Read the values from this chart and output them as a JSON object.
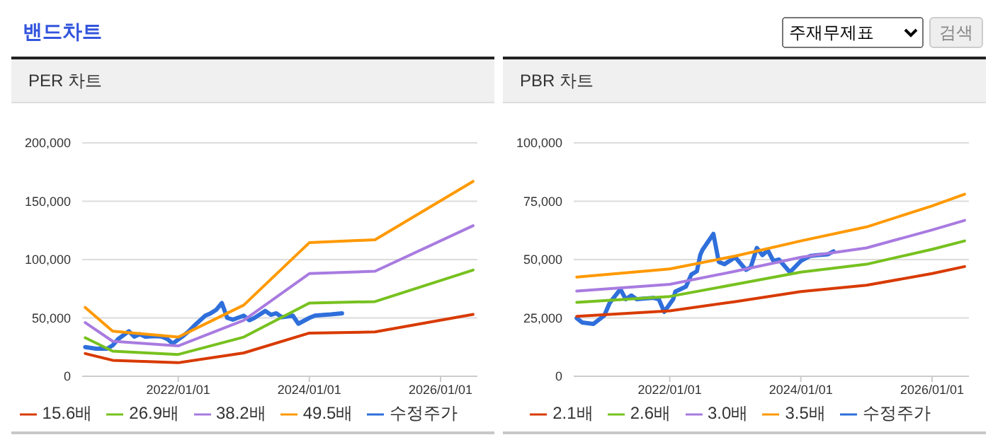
{
  "chart_data": [
    {
      "type": "line",
      "title": "PER 차트",
      "annotations": [
        "밴드차트",
        "주재무제표",
        "검색"
      ],
      "xlim": [
        "2020-07-15",
        "2026-07-25"
      ],
      "xticks": [
        {
          "value": "2022-01-01",
          "label": "2022/01/01"
        },
        {
          "value": "2024-01-01",
          "label": "2024/01/01"
        },
        {
          "value": "2026-01-01",
          "label": "2026/01/01"
        }
      ],
      "ylim": [
        0,
        200000
      ],
      "yticks": [
        0,
        {
          "value": 50000,
          "label": "50,000"
        },
        {
          "value": 100000,
          "label": "100,000"
        },
        {
          "value": 150000,
          "label": "150,000"
        },
        {
          "value": 200000,
          "label": "200,000"
        }
      ],
      "grid": "y",
      "legend": "bottom",
      "marker": "none",
      "series": [
        {
          "name": "수정주가",
          "color": "#2f6fdb",
          "x": [
            "2020-08",
            "2020-10",
            "2020-12",
            "2021-01",
            "2021-02",
            "2021-04",
            "2021-05",
            "2021-06",
            "2021-07",
            "2021-09",
            "2021-10",
            "2021-11",
            "2021-12",
            "2022-02",
            "2022-03",
            "2022-04",
            "2022-06",
            "2022-07",
            "2022-08",
            "2022-09",
            "2022-10",
            "2022-11",
            "2023-01",
            "2023-02",
            "2023-03",
            "2023-05",
            "2023-06",
            "2023-07",
            "2023-08",
            "2023-10",
            "2023-11",
            "2024-01",
            "2024-02",
            "2024-04",
            "2024-05",
            "2024-07"
          ],
          "values": [
            25000,
            23600,
            23600,
            26500,
            32000,
            38600,
            34000,
            36000,
            34000,
            34400,
            34000,
            32000,
            28000,
            35000,
            38600,
            43500,
            52000,
            54000,
            57000,
            62700,
            50000,
            48500,
            52000,
            48000,
            50000,
            56000,
            52700,
            54000,
            50600,
            52000,
            45000,
            50000,
            52000,
            52700,
            53000,
            54000
          ]
        },
        {
          "name": "15.6배",
          "color": "#d83a00",
          "x": [
            "2020-08",
            "2021-01",
            "2022-01",
            "2023-01",
            "2024-01",
            "2025-01",
            "2026-07"
          ],
          "values": [
            19500,
            13700,
            11600,
            20000,
            37000,
            38000,
            53000
          ]
        },
        {
          "name": "26.9배",
          "color": "#77c11f",
          "x": [
            "2020-08",
            "2021-01",
            "2022-01",
            "2023-01",
            "2024-01",
            "2025-01",
            "2026-07"
          ],
          "values": [
            33000,
            21500,
            18700,
            33600,
            62700,
            64000,
            91000
          ]
        },
        {
          "name": "38.2배",
          "color": "#a87be0",
          "x": [
            "2020-08",
            "2021-01",
            "2022-01",
            "2023-01",
            "2024-01",
            "2025-01",
            "2026-07"
          ],
          "values": [
            46000,
            30000,
            26000,
            48000,
            88000,
            90000,
            129000
          ]
        },
        {
          "name": "49.5배",
          "color": "#ff9900",
          "x": [
            "2020-08",
            "2021-01",
            "2022-01",
            "2023-01",
            "2024-01",
            "2025-01",
            "2026-07"
          ],
          "values": [
            59000,
            38600,
            33600,
            61000,
            114500,
            117000,
            167000
          ]
        }
      ]
    },
    {
      "type": "line",
      "title": "PBR 차트",
      "xlim": [
        "2020-07-15",
        "2026-07-25"
      ],
      "xticks": [
        {
          "value": "2022-01-01",
          "label": "2022/01/01"
        },
        {
          "value": "2024-01-01",
          "label": "2024/01/01"
        },
        {
          "value": "2026-01-01",
          "label": "2026/01/01"
        }
      ],
      "ylim": [
        0,
        100000
      ],
      "yticks": [
        0,
        {
          "value": 25000,
          "label": "25,000"
        },
        {
          "value": 50000,
          "label": "50,000"
        },
        {
          "value": 75000,
          "label": "75,000"
        },
        {
          "value": 100000,
          "label": "100,000"
        }
      ],
      "grid": "y",
      "legend": "bottom",
      "marker": "none",
      "series": [
        {
          "name": "수정주가",
          "color": "#2f6fdb",
          "x": [
            "2020-08",
            "2020-09",
            "2020-11",
            "2021-01",
            "2021-02",
            "2021-04",
            "2021-05",
            "2021-06",
            "2021-07",
            "2021-10",
            "2021-11",
            "2021-12",
            "2022-01-20",
            "2022-02",
            "2022-04",
            "2022-05",
            "2022-06",
            "2022-06-20",
            "2022-07",
            "2022-09",
            "2022-10",
            "2022-11",
            "2023-01",
            "2023-03",
            "2023-03-28",
            "2023-05",
            "2023-06",
            "2023-07",
            "2023-08",
            "2023-09",
            "2023-11",
            "2024-01",
            "2024-02-20",
            "2024-04",
            "2024-06",
            "2024-07"
          ],
          "values": [
            24900,
            23000,
            22400,
            26000,
            31500,
            37300,
            33000,
            34600,
            33000,
            33600,
            33000,
            27600,
            33000,
            36300,
            38400,
            43600,
            45000,
            52000,
            54000,
            61000,
            49000,
            48000,
            51000,
            45600,
            46700,
            55000,
            51900,
            54000,
            49400,
            50000,
            44600,
            49400,
            51500,
            51900,
            52300,
            53500
          ]
        },
        {
          "name": "2.1배",
          "color": "#d83a00",
          "x": [
            "2020-08",
            "2022-01",
            "2023-01",
            "2024-01",
            "2025-01",
            "2026-01",
            "2026-07"
          ],
          "values": [
            25700,
            28000,
            32000,
            36300,
            39000,
            44000,
            47000
          ]
        },
        {
          "name": "2.6배",
          "color": "#77c11f",
          "x": [
            "2020-08",
            "2022-01",
            "2023-01",
            "2024-01",
            "2025-01",
            "2026-01",
            "2026-07"
          ],
          "values": [
            31700,
            34200,
            39400,
            44600,
            48000,
            54400,
            58000
          ]
        },
        {
          "name": "3.0배",
          "color": "#a87be0",
          "x": [
            "2020-08",
            "2022-01",
            "2023-01",
            "2024-01",
            "2025-01",
            "2026-01",
            "2026-07"
          ],
          "values": [
            36500,
            39400,
            45000,
            51000,
            55000,
            62700,
            66800
          ]
        },
        {
          "name": "3.5배",
          "color": "#ff9900",
          "x": [
            "2020-08",
            "2022-01",
            "2023-01",
            "2024-01",
            "2025-01",
            "2026-01",
            "2026-07"
          ],
          "values": [
            42500,
            46000,
            51500,
            58000,
            64000,
            73000,
            78000
          ]
        }
      ]
    }
  ]
}
